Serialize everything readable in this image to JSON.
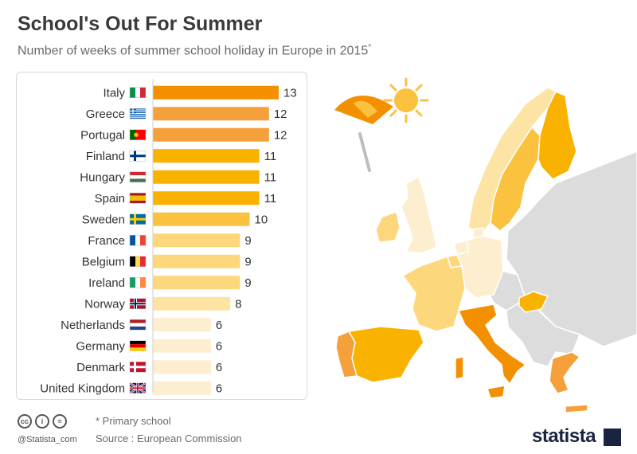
{
  "header": {
    "title": "School's Out For Summer",
    "subtitle": "Number of weeks of summer school holiday in Europe in 2015",
    "subtitle_mark": "*"
  },
  "chart_data": {
    "type": "bar",
    "orientation": "horizontal",
    "title": "School's Out For Summer",
    "subtitle": "Number of weeks of summer school holiday in Europe in 2015*",
    "xlabel": "",
    "ylabel": "",
    "xlim": [
      0,
      13
    ],
    "grid": false,
    "categories": [
      "Italy",
      "Greece",
      "Portugal",
      "Finland",
      "Hungary",
      "Spain",
      "Sweden",
      "France",
      "Belgium",
      "Ireland",
      "Norway",
      "Netherlands",
      "Germany",
      "Denmark",
      "United Kingdom"
    ],
    "values": [
      13,
      12,
      12,
      11,
      11,
      11,
      10,
      9,
      9,
      9,
      8,
      6,
      6,
      6,
      6
    ],
    "flags": [
      "IT",
      "GR",
      "PT",
      "FI",
      "HU",
      "ES",
      "SE",
      "FR",
      "BE",
      "IE",
      "NO",
      "NL",
      "DE",
      "DK",
      "GB"
    ],
    "colors": [
      "#f39000",
      "#f5a03a",
      "#f5a03a",
      "#f9b200",
      "#f9b200",
      "#f9b200",
      "#fac23e",
      "#fdd77c",
      "#fdd77c",
      "#fdd77c",
      "#fde3a4",
      "#fdeed0",
      "#fdeed0",
      "#fdeed0",
      "#fdeed0"
    ]
  },
  "footer": {
    "cc_icons": [
      "cc",
      "i",
      "="
    ],
    "handle": "@Statista_com",
    "note": "* Primary school",
    "source": "Source : European Commission",
    "brand": "statista"
  }
}
